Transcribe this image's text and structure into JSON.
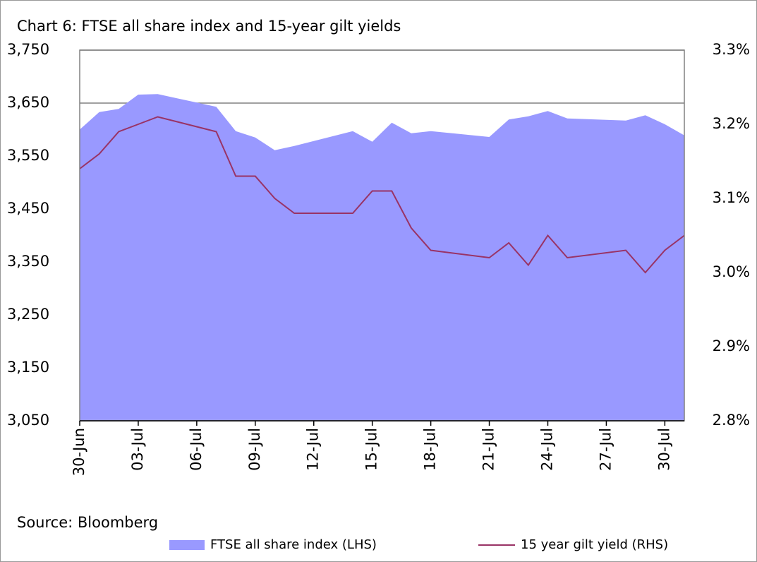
{
  "chart_data": {
    "type": "area-line",
    "title": "Chart 6: FTSE all share index and 15-year gilt yields",
    "source": "Source: Bloomberg",
    "x": [
      "30-Jun",
      "01-Jul",
      "02-Jul",
      "03-Jul",
      "04-Jul",
      "07-Jul",
      "08-Jul",
      "09-Jul",
      "10-Jul",
      "11-Jul",
      "14-Jul",
      "15-Jul",
      "16-Jul",
      "17-Jul",
      "18-Jul",
      "21-Jul",
      "22-Jul",
      "23-Jul",
      "24-Jul",
      "25-Jul",
      "28-Jul",
      "29-Jul",
      "30-Jul",
      "31-Jul"
    ],
    "xlim": [
      "30-Jun",
      "31-Jul"
    ],
    "xticks": [
      "30-Jun",
      "03-Jul",
      "06-Jul",
      "09-Jul",
      "12-Jul",
      "15-Jul",
      "18-Jul",
      "21-Jul",
      "24-Jul",
      "27-Jul",
      "30-Jul"
    ],
    "series": [
      {
        "name": "FTSE all share index (LHS)",
        "color": "#9999ff",
        "style": "area",
        "values": [
          3600,
          3633,
          3639,
          3666,
          3667,
          3643,
          3597,
          3585,
          3561,
          3569,
          3597,
          3577,
          3613,
          3593,
          3597,
          3586,
          3619,
          3625,
          3635,
          3621,
          3617,
          3627,
          3610,
          3589
        ]
      },
      {
        "name": "15 year gilt yield (RHS)",
        "color": "#993366",
        "style": "line",
        "axis": "y2",
        "values": [
          3.14,
          3.16,
          3.19,
          3.2,
          3.21,
          3.19,
          3.13,
          3.13,
          3.1,
          3.08,
          3.08,
          3.11,
          3.11,
          3.06,
          3.03,
          3.02,
          3.04,
          3.01,
          3.05,
          3.02,
          3.03,
          3.0,
          3.03,
          3.05
        ]
      }
    ],
    "ylim": [
      3050,
      3750
    ],
    "yticks": [
      {
        "value": 3050,
        "label": "3,050"
      },
      {
        "value": 3150,
        "label": "3,150"
      },
      {
        "value": 3250,
        "label": "3,250"
      },
      {
        "value": 3350,
        "label": "3,350"
      },
      {
        "value": 3450,
        "label": "3,450"
      },
      {
        "value": 3550,
        "label": "3,550"
      },
      {
        "value": 3650,
        "label": "3,650"
      },
      {
        "value": 3750,
        "label": "3,750"
      }
    ],
    "y2lim": [
      2.8,
      3.3
    ],
    "y2ticks": [
      {
        "value": 2.8,
        "label": "2.8%"
      },
      {
        "value": 2.9,
        "label": "2.9%"
      },
      {
        "value": 3.0,
        "label": "3.0%"
      },
      {
        "value": 3.1,
        "label": "3.1%"
      },
      {
        "value": 3.2,
        "label": "3.2%"
      },
      {
        "value": 3.3,
        "label": "3.3%"
      }
    ],
    "grid": true,
    "legend": "bottom"
  }
}
